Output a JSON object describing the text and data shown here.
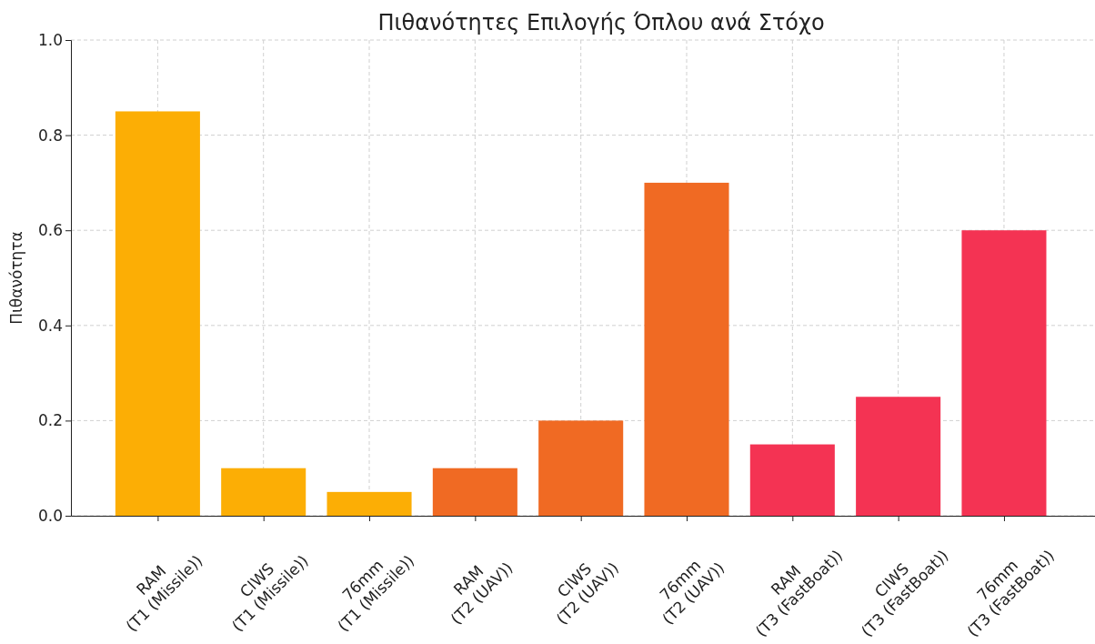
{
  "chart_data": {
    "type": "bar",
    "title": "Πιθανότητες Επιλογής Όπλου ανά Στόχο",
    "ylabel": "Πιθανότητα",
    "categories": [
      "RAM\n(T1 (Missile))",
      "CIWS\n(T1 (Missile))",
      "76mm\n(T1 (Missile))",
      "RAM\n(T2 (UAV))",
      "CIWS\n(T2 (UAV))",
      "76mm\n(T2 (UAV))",
      "RAM\n(T3 (FastBoat))",
      "CIWS\n(T3 (FastBoat))",
      "76mm\n(T3 (FastBoat))"
    ],
    "values": [
      0.85,
      0.1,
      0.05,
      0.1,
      0.2,
      0.7,
      0.15,
      0.25,
      0.6
    ],
    "colors": [
      "#fcae05",
      "#fcae05",
      "#fcae05",
      "#f06a23",
      "#f06a23",
      "#f06a23",
      "#f43353",
      "#f43353",
      "#f43353"
    ],
    "ylim": [
      0,
      1
    ],
    "yticks": [
      {
        "value": 0,
        "label": "0.0"
      },
      {
        "value": 0.2,
        "label": "0.2"
      },
      {
        "value": 0.4,
        "label": "0.4"
      },
      {
        "value": 0.6,
        "label": "0.6"
      },
      {
        "value": 0.8,
        "label": "0.8"
      },
      {
        "value": 1,
        "label": "1.0"
      }
    ],
    "grid": true
  }
}
